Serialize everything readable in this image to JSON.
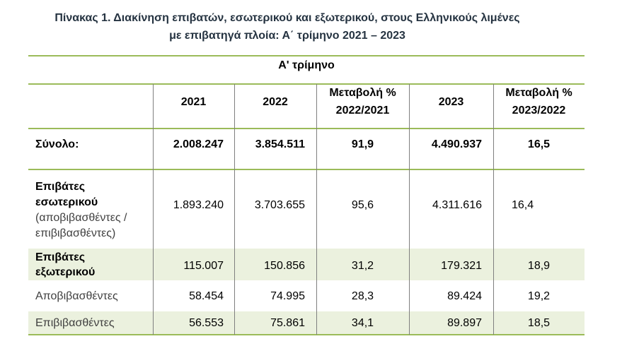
{
  "title": {
    "lines": [
      "Πίνακας 1. Διακίνηση επιβατών, εσωτερικού και εξωτερικού, στους Ελληνικούς λιμένες",
      "με επιβατηγά πλοία: Α΄ τρίμηνο 2021 – 2023"
    ]
  },
  "table": {
    "period_header": "Α' τρίμηνο",
    "columns": [
      {
        "lines": [
          "2021"
        ]
      },
      {
        "lines": [
          "2022"
        ]
      },
      {
        "lines": [
          "Μεταβολή %",
          "2022/2021"
        ]
      },
      {
        "lines": [
          "2023"
        ]
      },
      {
        "lines": [
          "Μεταβολή %",
          "2023/2022"
        ]
      }
    ],
    "rows": [
      {
        "label_lines": [
          "Σύνολο:"
        ],
        "values": [
          "2.008.247",
          "3.854.511",
          "91,9",
          "4.490.937",
          "16,5"
        ]
      },
      {
        "label_lines": [
          "Επιβάτες",
          "εσωτερικού"
        ],
        "note_lines": [
          "(αποβιβασθέντες /",
          "επιβιβασθέντες)"
        ],
        "values": [
          "1.893.240",
          "3.703.655",
          "95,6",
          "4.311.616",
          "16,4"
        ]
      },
      {
        "label_lines": [
          "Επιβάτες",
          "εξωτερικού"
        ],
        "values": [
          "115.007",
          "150.856",
          "31,2",
          "179.321",
          "18,9"
        ]
      },
      {
        "label_lines": [
          "Αποβιβασθέντες"
        ],
        "values": [
          "58.454",
          "74.995",
          "28,3",
          "89.424",
          "19,2"
        ]
      },
      {
        "label_lines": [
          "Επιβιβασθέντες"
        ],
        "values": [
          "56.553",
          "75.861",
          "34,1",
          "89.897",
          "18,5"
        ]
      }
    ]
  },
  "colors": {
    "title_text": "#253341",
    "rule_green": "#9bbb59",
    "band_green": "#ebf1de",
    "column_divider": "#7f7f7f"
  }
}
